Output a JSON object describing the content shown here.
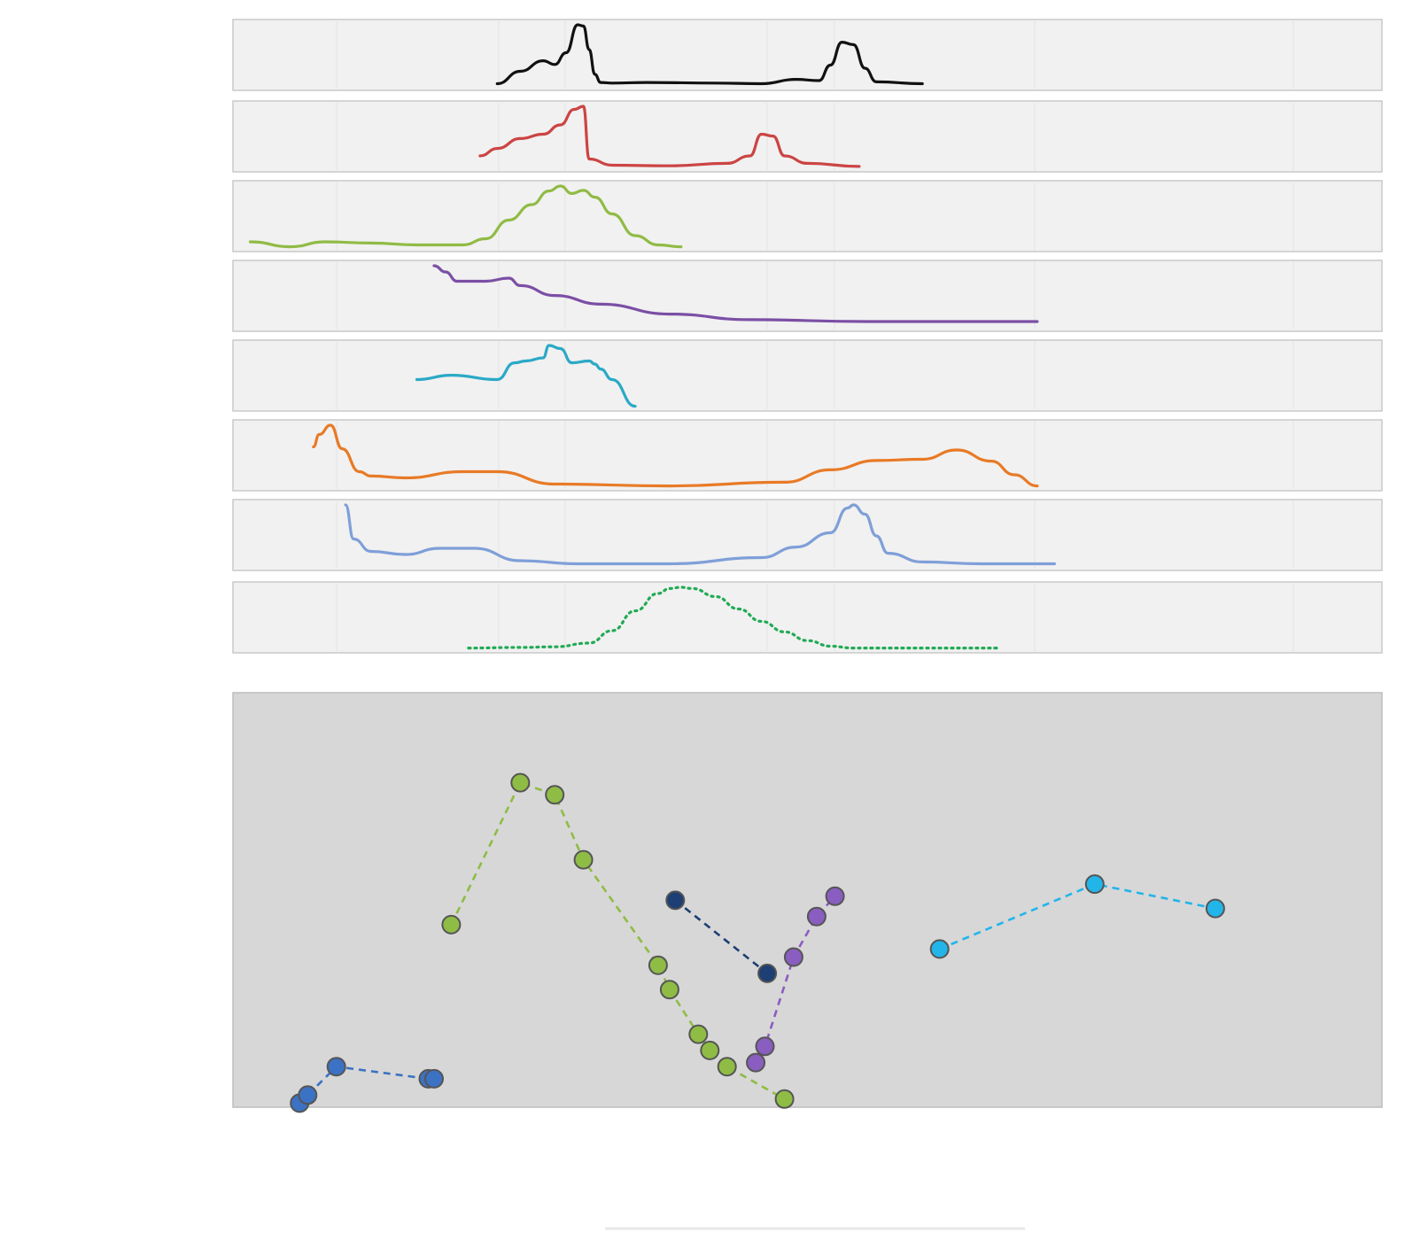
{
  "chart_data": {
    "type": "line",
    "title": "",
    "xlabel": "",
    "ylabel": "",
    "x_range": [
      0,
      100
    ],
    "grid": false,
    "legend": "none",
    "panels": [
      {
        "kind": "line",
        "name": "",
        "color": "#111111",
        "x": [
          23,
          25,
          27,
          28,
          29,
          30,
          30.5,
          31,
          31.5,
          32,
          33,
          36,
          42,
          46,
          49,
          51,
          52,
          53,
          54,
          55,
          56,
          60
        ],
        "y": [
          0.05,
          0.25,
          0.42,
          0.36,
          0.55,
          1.0,
          0.98,
          0.6,
          0.2,
          0.07,
          0.06,
          0.07,
          0.06,
          0.05,
          0.12,
          0.1,
          0.35,
          0.72,
          0.68,
          0.3,
          0.08,
          0.05
        ]
      },
      {
        "kind": "line",
        "name": "",
        "color": "#cc4444",
        "x": [
          21.5,
          23,
          25,
          27,
          28.5,
          29.7,
          30.5,
          31,
          33,
          38,
          43,
          45,
          46,
          47,
          48,
          50,
          54.5
        ],
        "y": [
          0.2,
          0.32,
          0.48,
          0.55,
          0.7,
          0.95,
          1.0,
          0.15,
          0.05,
          0.04,
          0.08,
          0.2,
          0.55,
          0.52,
          0.2,
          0.08,
          0.03
        ]
      },
      {
        "kind": "line",
        "name": "",
        "color": "#90bb45",
        "x": [
          1.5,
          5,
          8,
          12,
          16,
          20,
          22,
          24,
          26,
          27.5,
          28.5,
          29.5,
          30.5,
          31.5,
          33,
          35,
          37,
          39
        ],
        "y": [
          0.1,
          0.02,
          0.1,
          0.08,
          0.05,
          0.05,
          0.15,
          0.45,
          0.7,
          0.92,
          1.0,
          0.88,
          0.93,
          0.82,
          0.55,
          0.2,
          0.05,
          0.02
        ]
      },
      {
        "kind": "line",
        "name": "",
        "color": "#7b4fa5",
        "x": [
          17.5,
          18.5,
          19.5,
          22,
          24,
          25,
          28,
          32,
          38,
          45,
          55,
          70
        ],
        "y": [
          1.0,
          0.9,
          0.75,
          0.75,
          0.8,
          0.68,
          0.52,
          0.38,
          0.22,
          0.13,
          0.1,
          0.1
        ]
      },
      {
        "kind": "line",
        "name": "",
        "color": "#2aa9c6",
        "x": [
          16,
          19,
          23,
          24.5,
          25.5,
          27,
          27.5,
          28.5,
          29.5,
          31,
          31.5,
          32,
          33,
          35
        ],
        "y": [
          0.45,
          0.52,
          0.45,
          0.72,
          0.75,
          0.8,
          1.0,
          0.95,
          0.72,
          0.75,
          0.7,
          0.62,
          0.45,
          0.02
        ]
      },
      {
        "kind": "line",
        "name": "",
        "color": "#e87a26",
        "x": [
          7,
          7.5,
          8.5,
          9.5,
          11,
          12,
          15,
          20,
          23,
          28,
          38,
          48,
          52,
          56,
          60,
          63,
          66,
          68,
          70
        ],
        "y": [
          0.65,
          0.85,
          1.0,
          0.62,
          0.25,
          0.18,
          0.15,
          0.25,
          0.25,
          0.05,
          0.02,
          0.08,
          0.28,
          0.43,
          0.45,
          0.6,
          0.42,
          0.2,
          0.02
        ]
      },
      {
        "kind": "line",
        "name": "",
        "color": "#7f9fd8",
        "x": [
          9.8,
          10.5,
          12,
          15,
          18,
          21,
          25,
          30,
          38,
          46,
          49,
          52,
          53.5,
          54,
          55,
          56,
          57,
          60,
          65,
          71.5
        ],
        "y": [
          1.0,
          0.45,
          0.25,
          0.2,
          0.3,
          0.3,
          0.1,
          0.05,
          0.05,
          0.15,
          0.32,
          0.55,
          0.95,
          1.0,
          0.85,
          0.5,
          0.22,
          0.08,
          0.05,
          0.05
        ]
      },
      {
        "kind": "dotted",
        "name": "",
        "color": "#22aa55",
        "x": [
          20.5,
          25,
          28,
          31,
          33,
          35,
          37,
          38,
          39,
          40,
          42,
          44,
          46,
          48,
          50,
          52,
          54,
          56,
          60,
          66.5
        ],
        "y": [
          0.02,
          0.03,
          0.04,
          0.1,
          0.3,
          0.62,
          0.9,
          0.98,
          1.0,
          0.98,
          0.85,
          0.65,
          0.45,
          0.28,
          0.14,
          0.05,
          0.02,
          0.02,
          0.02,
          0.02
        ]
      }
    ],
    "scatter": {
      "y_range": [
        0,
        100
      ],
      "series": [
        {
          "name": "",
          "color": "#3b72c4",
          "x": [
            5.8,
            6.5,
            9,
            17,
            17.5
          ],
          "y": [
            1,
            3,
            10,
            7,
            7
          ]
        },
        {
          "name": "",
          "color": "#8fbc45",
          "x": [
            19,
            25,
            28,
            30.5,
            37,
            38,
            40.5,
            41.5,
            43,
            48
          ],
          "y": [
            45,
            80,
            77,
            61,
            35,
            29,
            18,
            14,
            10,
            2
          ]
        },
        {
          "name": "",
          "color": "#1d3f73",
          "x": [
            38.5,
            46.5
          ],
          "y": [
            51,
            33
          ]
        },
        {
          "name": "",
          "color": "#8a5dc0",
          "x": [
            45.5,
            46.3,
            48.8,
            50.8,
            52.4
          ],
          "y": [
            11,
            15,
            37,
            47,
            52
          ]
        },
        {
          "name": "",
          "color": "#22b5ea",
          "x": [
            61.5,
            75,
            85.5
          ],
          "y": [
            39,
            55,
            49
          ]
        }
      ]
    }
  }
}
